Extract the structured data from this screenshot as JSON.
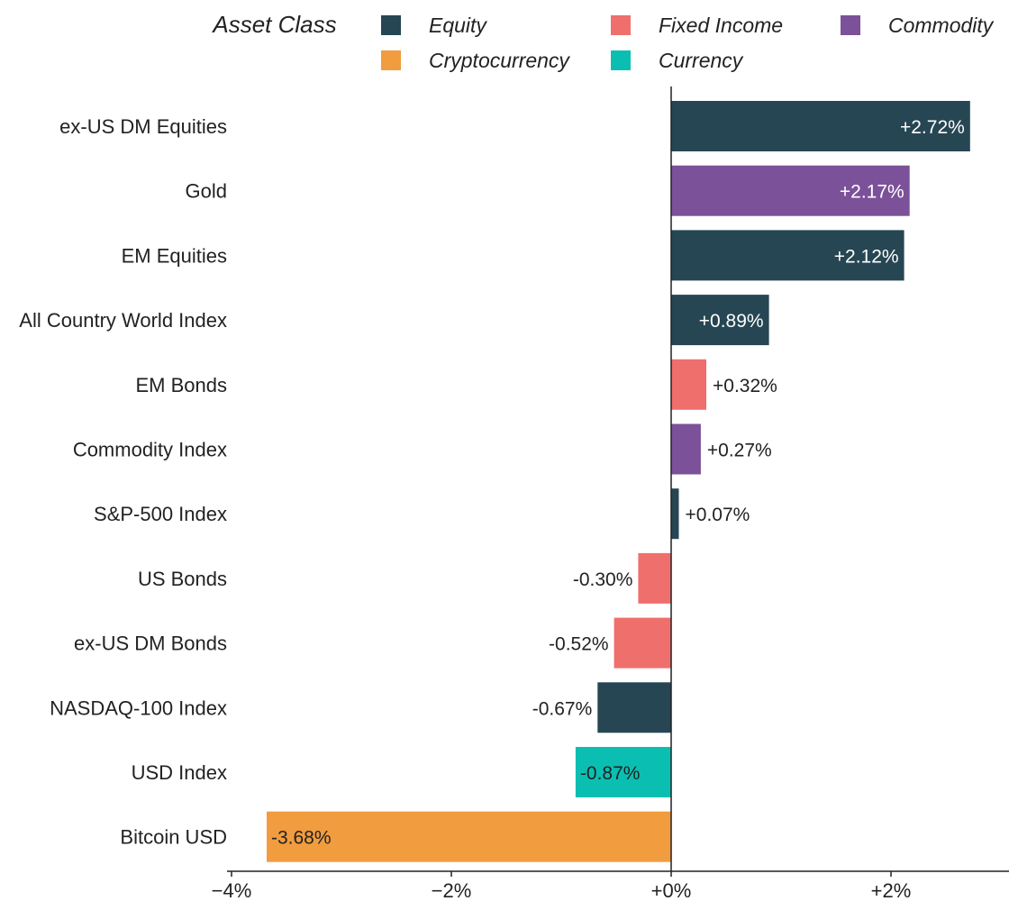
{
  "chart_data": {
    "type": "bar",
    "orientation": "horizontal",
    "legend_title": "Asset Class",
    "legend": [
      {
        "name": "Equity",
        "color": "#264653"
      },
      {
        "name": "Fixed Income",
        "color": "#ef6f6c"
      },
      {
        "name": "Commodity",
        "color": "#7b5199"
      },
      {
        "name": "Cryptocurrency",
        "color": "#f19c3e"
      },
      {
        "name": "Currency",
        "color": "#0abfb1"
      }
    ],
    "categories": [
      "ex-US DM Equities",
      "Gold",
      "EM Equities",
      "All Country World Index",
      "EM Bonds",
      "Commodity Index",
      "S&P-500 Index ",
      "US Bonds",
      "ex-US DM Bonds",
      "NASDAQ-100 Index",
      "USD Index",
      "Bitcoin USD"
    ],
    "values": [
      2.72,
      2.17,
      2.12,
      0.89,
      0.32,
      0.27,
      0.07,
      -0.3,
      -0.52,
      -0.67,
      -0.87,
      -3.68
    ],
    "value_labels": [
      "+2.72%",
      "+2.17%",
      "+2.12%",
      "+0.89%",
      "+0.32%",
      "+0.27%",
      "+0.07%",
      "-0.30%",
      "-0.52%",
      "-0.67%",
      "-0.87%",
      "-3.68%"
    ],
    "asset_class": [
      "Equity",
      "Commodity",
      "Equity",
      "Equity",
      "Fixed Income",
      "Commodity",
      "Equity",
      "Fixed Income",
      "Fixed Income",
      "Equity",
      "Currency",
      "Cryptocurrency"
    ],
    "label_inside": [
      true,
      true,
      true,
      true,
      false,
      false,
      false,
      false,
      false,
      false,
      true,
      true
    ],
    "label_dark": [
      false,
      false,
      false,
      false,
      true,
      true,
      true,
      true,
      true,
      true,
      true,
      true
    ],
    "xlim": [
      -4,
      3
    ],
    "xticks": [
      -4,
      -2,
      0,
      2
    ],
    "xtick_labels": [
      "−4%",
      "−2%",
      "+0%",
      "+2%"
    ],
    "xlabel": "",
    "ylabel": "",
    "grid": false
  }
}
